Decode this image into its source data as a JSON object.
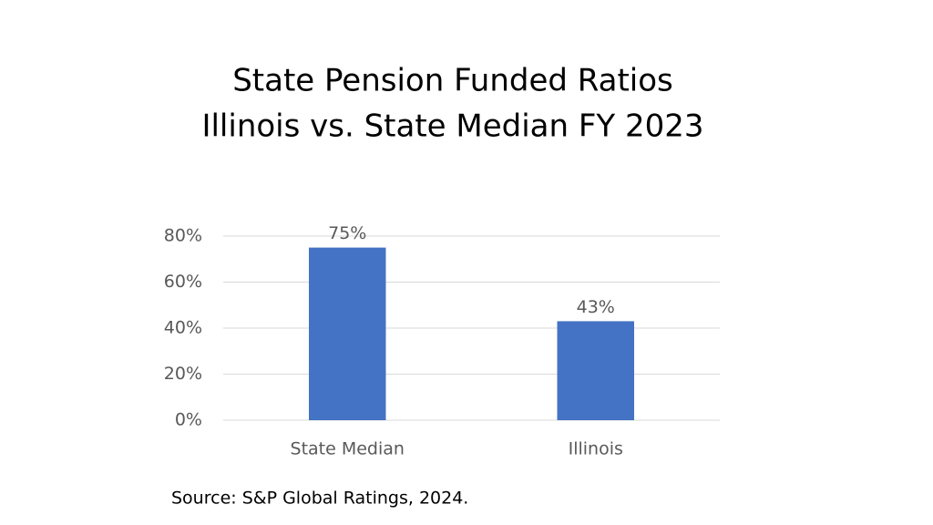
{
  "chart_data": {
    "type": "bar",
    "title": "State Pension Funded Ratios",
    "subtitle": "Illinois vs. State Median FY 2023",
    "categories": [
      "State Median",
      "Illinois"
    ],
    "values": [
      75,
      43
    ],
    "value_labels": [
      "75%",
      "43%"
    ],
    "color": "#4472c4",
    "ylim": [
      0,
      80
    ],
    "yticks": [
      {
        "value": 0,
        "label": "0%"
      },
      {
        "value": 20,
        "label": "20%"
      },
      {
        "value": 40,
        "label": "40%"
      },
      {
        "value": 60,
        "label": "60%"
      },
      {
        "value": 80,
        "label": "80%"
      }
    ],
    "grid": true,
    "source": "Source: S&P Global Ratings, 2024."
  }
}
